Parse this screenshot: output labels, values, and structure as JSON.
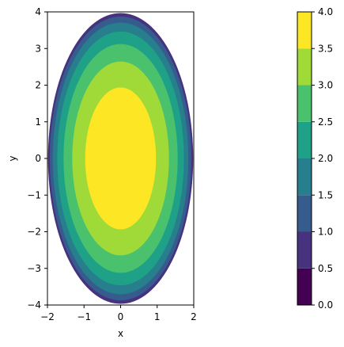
{
  "chart_data": {
    "type": "contourf",
    "xlabel": "x",
    "ylabel": "y",
    "xlim": [
      -2,
      2
    ],
    "ylim": [
      -4,
      4
    ],
    "x_ticks": [
      -2,
      -1,
      0,
      1,
      2
    ],
    "x_tick_labels": [
      "−2",
      "−1",
      "0",
      "1",
      "2"
    ],
    "y_ticks": [
      -4,
      -3,
      -2,
      -1,
      0,
      1,
      2,
      3,
      4
    ],
    "y_tick_labels": [
      "−4",
      "−3",
      "−2",
      "−1",
      "0",
      "1",
      "2",
      "3",
      "4"
    ],
    "aspect": "equal",
    "domain": "x^2 + (y/2)^2 <= 4",
    "region_rx": 2,
    "region_ry": 4,
    "field_formula": "sqrt(16 - 4*x^2 - y^2)",
    "contour_levels": [
      0.0,
      0.5,
      1.0,
      1.5,
      2.0,
      2.5,
      3.0,
      3.5,
      4.0
    ],
    "level_colors": [
      "#440154",
      "#46327e",
      "#365c8d",
      "#277f8e",
      "#1fa187",
      "#4ac16d",
      "#a0da39",
      "#fde725"
    ],
    "colormap": "viridis",
    "colorbar": {
      "range": [
        0.0,
        4.0
      ],
      "ticks": [
        0.0,
        0.5,
        1.0,
        1.5,
        2.0,
        2.5,
        3.0,
        3.5,
        4.0
      ],
      "tick_labels": [
        "0.0",
        "0.5",
        "1.0",
        "1.5",
        "2.0",
        "2.5",
        "3.0",
        "3.5",
        "4.0"
      ],
      "placement": "right"
    }
  }
}
